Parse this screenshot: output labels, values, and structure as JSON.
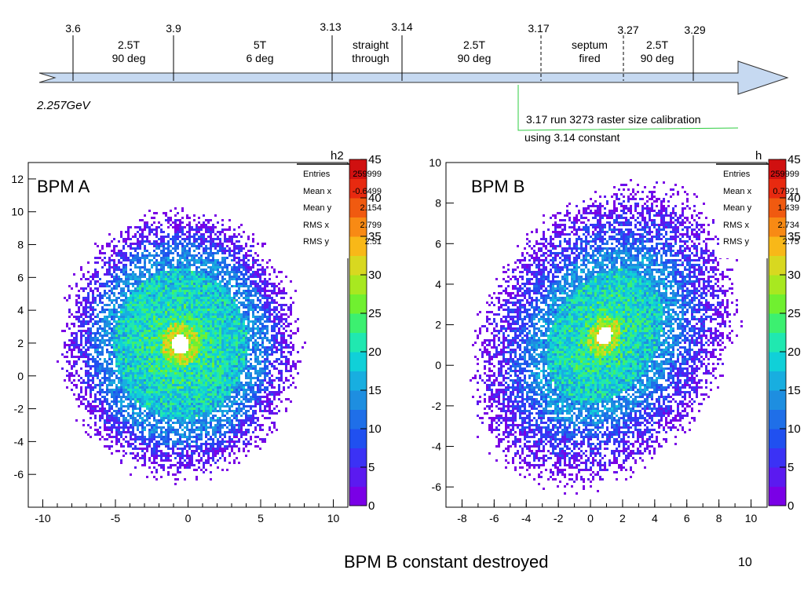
{
  "timeline": {
    "dates": [
      "3.6",
      "3.9",
      "3.13",
      "3.14",
      "3.17",
      "3.27",
      "3.29"
    ],
    "segments": [
      {
        "line1": "2.5T",
        "line2": "90 deg"
      },
      {
        "line1": "5T",
        "line2": "6 deg"
      },
      {
        "line1": "straight",
        "line2": "through"
      },
      {
        "line1": "2.5T",
        "line2": "90 deg"
      },
      {
        "line1": "septum",
        "line2": "fired"
      },
      {
        "line1": "2.5T",
        "line2": "90 deg"
      }
    ],
    "energy": "2.257GeV",
    "note_line1": "3.17 run 3273 raster size calibration",
    "note_line2": "using 3.14 constant",
    "colors": {
      "arrow_fill": "#c6d9f1",
      "note_line": "#2ecc40"
    }
  },
  "chart_data": [
    {
      "type": "heatmap",
      "histogram_name": "h2",
      "title": "BPM A",
      "xlim": [
        -11,
        11
      ],
      "ylim": [
        -8,
        13
      ],
      "xticks": [
        "-10",
        "-5",
        "0",
        "5",
        "10"
      ],
      "yticks": [
        "-6",
        "-4",
        "-2",
        "0",
        "2",
        "4",
        "6",
        "8",
        "10",
        "12"
      ],
      "zlim": [
        0,
        45
      ],
      "zticks": [
        "0",
        "5",
        "10",
        "15",
        "20",
        "25",
        "30",
        "35",
        "40",
        "45"
      ],
      "distribution": {
        "center": [
          -0.6,
          2.0
        ],
        "hole_radius": 0.6,
        "ring_radius": 4.6,
        "outer_radius": 8.0,
        "tilt_deg": 0
      },
      "stats": {
        "labels": [
          "Entries",
          "Mean x",
          "Mean y",
          "RMS x",
          "RMS y"
        ],
        "values": [
          "259999",
          "-0.6499",
          "2.154",
          "2.799",
          "2.51"
        ]
      }
    },
    {
      "type": "heatmap",
      "histogram_name": "h",
      "title": "BPM B",
      "xlim": [
        -9,
        11
      ],
      "ylim": [
        -7,
        10
      ],
      "xticks": [
        "-8",
        "-6",
        "-4",
        "-2",
        "0",
        "2",
        "4",
        "6",
        "8",
        "10"
      ],
      "yticks": [
        "-6",
        "-4",
        "-2",
        "0",
        "2",
        "4",
        "6",
        "8",
        "10"
      ],
      "zlim": [
        0,
        45
      ],
      "zticks": [
        "0",
        "5",
        "10",
        "15",
        "20",
        "25",
        "30",
        "35",
        "40",
        "45"
      ],
      "distribution": {
        "center": [
          0.8,
          1.5
        ],
        "hole_radius": 0.45,
        "ring_radius": 3.4,
        "outer_radius": 7.5,
        "tilt_deg": 35
      },
      "stats": {
        "labels": [
          "Entries",
          "Mean x",
          "Mean y",
          "RMS x",
          "RMS y"
        ],
        "values": [
          "259999",
          "0.7921",
          "1.439",
          "2.734",
          "2.75"
        ]
      }
    }
  ],
  "footer": {
    "caption": "BPM B constant destroyed",
    "page_number": "10"
  }
}
